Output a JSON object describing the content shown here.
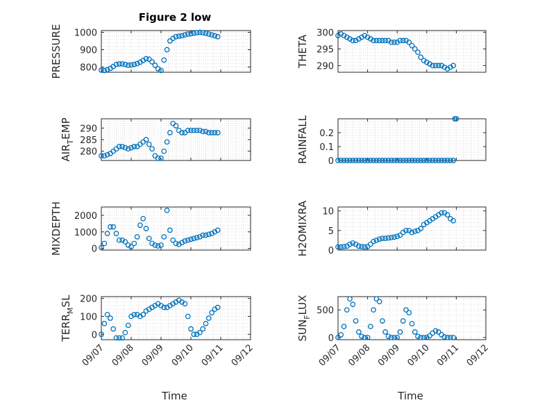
{
  "figure": {
    "title": "Figure 2 low",
    "marker_color": "#0072BD",
    "axis_color": "#262626",
    "grid_color": "#dcdcdc"
  },
  "chart_data": [
    {
      "type": "scatter",
      "ylabel": "PRESSURE",
      "xlabel": "",
      "title": "Figure 2 low",
      "xlim": [
        0,
        5
      ],
      "ylim": [
        770,
        1010
      ],
      "yticks": [
        800,
        900,
        1000
      ],
      "ytick_labels": [
        "800",
        "900",
        "1000"
      ],
      "grid": true,
      "x": [
        0,
        0.1,
        0.2,
        0.3,
        0.4,
        0.5,
        0.6,
        0.7,
        0.8,
        0.9,
        1.0,
        1.1,
        1.2,
        1.3,
        1.4,
        1.5,
        1.6,
        1.7,
        1.8,
        1.9,
        2.0,
        2.1,
        2.2,
        2.3,
        2.4,
        2.5,
        2.6,
        2.7,
        2.8,
        2.9,
        3.0,
        3.1,
        3.2,
        3.3,
        3.4,
        3.5,
        3.6,
        3.7,
        3.8,
        3.9
      ],
      "y": [
        782,
        780,
        785,
        792,
        803,
        815,
        818,
        818,
        815,
        810,
        812,
        815,
        820,
        828,
        838,
        848,
        845,
        830,
        810,
        790,
        780,
        840,
        900,
        950,
        965,
        975,
        978,
        980,
        985,
        990,
        992,
        995,
        998,
        1000,
        998,
        995,
        990,
        985,
        980,
        975
      ]
    },
    {
      "type": "scatter",
      "ylabel": "THETA",
      "xlabel": "",
      "xlim": [
        0,
        5
      ],
      "ylim": [
        288,
        300.5
      ],
      "yticks": [
        290,
        295,
        300
      ],
      "ytick_labels": [
        "290",
        "295",
        "300"
      ],
      "grid": true,
      "x": [
        0,
        0.1,
        0.2,
        0.3,
        0.4,
        0.5,
        0.6,
        0.7,
        0.8,
        0.9,
        1.0,
        1.1,
        1.2,
        1.3,
        1.4,
        1.5,
        1.6,
        1.7,
        1.8,
        1.9,
        2.0,
        2.1,
        2.2,
        2.3,
        2.4,
        2.5,
        2.6,
        2.7,
        2.8,
        2.9,
        3.0,
        3.1,
        3.2,
        3.3,
        3.4,
        3.5,
        3.6,
        3.7,
        3.8,
        3.9
      ],
      "y": [
        299,
        299.5,
        299,
        298.5,
        298,
        297.5,
        297.5,
        298,
        298.5,
        299,
        298.5,
        298,
        297.5,
        297.5,
        297.5,
        297.5,
        297.5,
        297.5,
        297,
        297,
        297,
        297.5,
        297.5,
        297.5,
        297,
        296,
        295,
        294,
        292.5,
        291.5,
        291,
        290.5,
        290,
        290,
        290,
        290,
        289.5,
        289,
        289.5,
        290
      ]
    },
    {
      "type": "scatter",
      "ylabel": "AIR_TEMP",
      "ylabel_parts": [
        "AIR",
        "T",
        "EMP"
      ],
      "xlabel": "",
      "xlim": [
        0,
        5
      ],
      "ylim": [
        276,
        294
      ],
      "yticks": [
        280,
        285,
        290
      ],
      "ytick_labels": [
        "280",
        "285",
        "290"
      ],
      "grid": true,
      "x": [
        0,
        0.1,
        0.2,
        0.3,
        0.4,
        0.5,
        0.6,
        0.7,
        0.8,
        0.9,
        1.0,
        1.1,
        1.2,
        1.3,
        1.4,
        1.5,
        1.6,
        1.7,
        1.8,
        1.9,
        2.0,
        2.1,
        2.2,
        2.3,
        2.4,
        2.5,
        2.6,
        2.7,
        2.8,
        2.9,
        3.0,
        3.1,
        3.2,
        3.3,
        3.4,
        3.5,
        3.6,
        3.7,
        3.8,
        3.9
      ],
      "y": [
        278,
        278,
        278.5,
        279,
        280,
        281,
        282,
        282,
        281.5,
        281,
        281.5,
        282,
        282,
        283,
        284,
        285,
        283,
        281,
        278,
        277,
        277,
        280,
        284,
        288,
        292,
        291,
        289,
        288,
        288,
        289,
        289,
        289,
        289,
        289,
        288.5,
        288.5,
        288,
        288,
        288,
        288
      ]
    },
    {
      "type": "scatter",
      "ylabel": "RAINFALL",
      "xlabel": "",
      "xlim": [
        0,
        5
      ],
      "ylim": [
        0,
        0.3
      ],
      "yticks": [
        0,
        0.1,
        0.2
      ],
      "ytick_labels": [
        "0",
        "0.1",
        "0.2"
      ],
      "grid": true,
      "x": [
        0,
        0.1,
        0.2,
        0.3,
        0.4,
        0.5,
        0.6,
        0.7,
        0.8,
        0.9,
        1.0,
        1.1,
        1.2,
        1.3,
        1.4,
        1.5,
        1.6,
        1.7,
        1.8,
        1.9,
        2.0,
        2.1,
        2.2,
        2.3,
        2.4,
        2.5,
        2.6,
        2.7,
        2.8,
        2.9,
        3.0,
        3.1,
        3.2,
        3.3,
        3.4,
        3.5,
        3.6,
        3.7,
        3.8,
        3.9,
        3.95,
        4.0
      ],
      "y": [
        0,
        0,
        0,
        0,
        0,
        0,
        0,
        0,
        0,
        0,
        0,
        0,
        0,
        0,
        0,
        0,
        0,
        0,
        0,
        0,
        0,
        0,
        0,
        0,
        0,
        0,
        0,
        0,
        0,
        0,
        0,
        0,
        0,
        0,
        0,
        0,
        0,
        0,
        0,
        0,
        0.3,
        0.3
      ]
    },
    {
      "type": "scatter",
      "ylabel": "MIXDEPTH",
      "xlabel": "",
      "xlim": [
        0,
        5
      ],
      "ylim": [
        -100,
        2500
      ],
      "yticks": [
        0,
        1000,
        2000
      ],
      "ytick_labels": [
        "0",
        "1000",
        "2000"
      ],
      "grid": true,
      "x": [
        0,
        0.1,
        0.2,
        0.3,
        0.4,
        0.5,
        0.6,
        0.7,
        0.8,
        0.9,
        1.0,
        1.1,
        1.2,
        1.3,
        1.4,
        1.5,
        1.6,
        1.7,
        1.8,
        1.9,
        2.0,
        2.1,
        2.2,
        2.3,
        2.4,
        2.5,
        2.6,
        2.7,
        2.8,
        2.9,
        3.0,
        3.1,
        3.2,
        3.3,
        3.4,
        3.5,
        3.6,
        3.7,
        3.8,
        3.9
      ],
      "y": [
        50,
        300,
        900,
        1300,
        1300,
        900,
        500,
        500,
        400,
        200,
        100,
        300,
        700,
        1400,
        1800,
        1200,
        600,
        300,
        200,
        150,
        200,
        700,
        2300,
        1100,
        500,
        300,
        250,
        350,
        450,
        500,
        550,
        600,
        650,
        700,
        800,
        800,
        850,
        900,
        1000,
        1100
      ]
    },
    {
      "type": "scatter",
      "ylabel": "H2OMIXRA",
      "xlabel": "",
      "xlim": [
        0,
        5
      ],
      "ylim": [
        0,
        11
      ],
      "yticks": [
        0,
        5,
        10
      ],
      "ytick_labels": [
        "0",
        "5",
        "10"
      ],
      "grid": true,
      "x": [
        0,
        0.1,
        0.2,
        0.3,
        0.4,
        0.5,
        0.6,
        0.7,
        0.8,
        0.9,
        1.0,
        1.1,
        1.2,
        1.3,
        1.4,
        1.5,
        1.6,
        1.7,
        1.8,
        1.9,
        2.0,
        2.1,
        2.2,
        2.3,
        2.4,
        2.5,
        2.6,
        2.7,
        2.8,
        2.9,
        3.0,
        3.1,
        3.2,
        3.3,
        3.4,
        3.5,
        3.6,
        3.7,
        3.8,
        3.9
      ],
      "y": [
        0.8,
        0.8,
        0.9,
        1.0,
        1.5,
        1.8,
        1.5,
        1.0,
        0.9,
        0.8,
        0.9,
        1.5,
        2.2,
        2.5,
        2.8,
        3.0,
        3.0,
        3.1,
        3.2,
        3.3,
        3.5,
        3.8,
        4.5,
        5.0,
        5.0,
        4.5,
        4.8,
        5.0,
        5.5,
        6.5,
        7.0,
        7.5,
        8.0,
        8.5,
        9.0,
        9.5,
        9.5,
        9.0,
        8.0,
        7.5
      ]
    },
    {
      "type": "scatter",
      "ylabel": "TERR_MSL",
      "ylabel_parts": [
        "TERR",
        "M",
        "SL"
      ],
      "xlabel": "Time",
      "xlim": [
        0,
        5
      ],
      "ylim": [
        -30,
        210
      ],
      "yticks": [
        0,
        100,
        200
      ],
      "ytick_labels": [
        "0",
        "100",
        "200"
      ],
      "xtick_labels": [
        "09/07",
        "09/08",
        "09/09",
        "09/10",
        "09/11",
        "09/12"
      ],
      "grid": true,
      "x": [
        0,
        0.1,
        0.2,
        0.3,
        0.4,
        0.5,
        0.6,
        0.7,
        0.8,
        0.9,
        1.0,
        1.1,
        1.2,
        1.3,
        1.4,
        1.5,
        1.6,
        1.7,
        1.8,
        1.9,
        2.0,
        2.1,
        2.2,
        2.3,
        2.4,
        2.5,
        2.6,
        2.7,
        2.8,
        2.9,
        3.0,
        3.1,
        3.2,
        3.3,
        3.4,
        3.5,
        3.6,
        3.7,
        3.8,
        3.9
      ],
      "y": [
        0,
        60,
        110,
        90,
        30,
        -20,
        -20,
        -20,
        10,
        50,
        100,
        110,
        110,
        100,
        110,
        130,
        140,
        150,
        160,
        170,
        160,
        150,
        150,
        160,
        170,
        180,
        190,
        180,
        170,
        100,
        30,
        0,
        0,
        10,
        30,
        60,
        90,
        120,
        140,
        150
      ]
    },
    {
      "type": "scatter",
      "ylabel": "SUN_FLUX",
      "ylabel_parts": [
        "SUN",
        "F",
        "LUX"
      ],
      "xlabel": "Time",
      "xlim": [
        0,
        5
      ],
      "ylim": [
        -40,
        740
      ],
      "yticks": [
        0,
        500
      ],
      "ytick_labels": [
        "0",
        "500"
      ],
      "xtick_labels": [
        "09/07",
        "09/08",
        "09/09",
        "09/10",
        "09/11",
        "09/12"
      ],
      "grid": true,
      "x": [
        0,
        0.1,
        0.2,
        0.3,
        0.4,
        0.5,
        0.6,
        0.7,
        0.8,
        0.9,
        1.0,
        1.1,
        1.2,
        1.3,
        1.4,
        1.5,
        1.6,
        1.7,
        1.8,
        1.9,
        2.0,
        2.1,
        2.2,
        2.3,
        2.4,
        2.5,
        2.6,
        2.7,
        2.8,
        2.9,
        3.0,
        3.1,
        3.2,
        3.3,
        3.4,
        3.5,
        3.6,
        3.7,
        3.8,
        3.9
      ],
      "y": [
        0,
        50,
        200,
        500,
        700,
        600,
        300,
        100,
        20,
        0,
        0,
        200,
        500,
        700,
        650,
        300,
        100,
        20,
        0,
        0,
        0,
        100,
        300,
        500,
        450,
        250,
        100,
        20,
        0,
        0,
        0,
        30,
        80,
        120,
        100,
        50,
        10,
        0,
        0,
        0
      ]
    }
  ]
}
